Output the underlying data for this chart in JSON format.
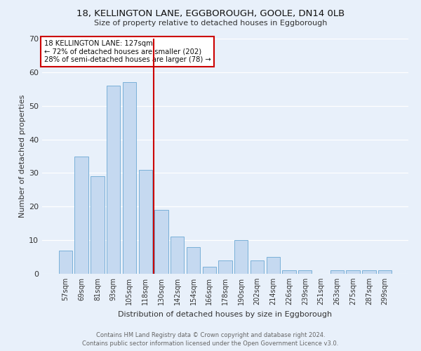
{
  "title1": "18, KELLINGTON LANE, EGGBOROUGH, GOOLE, DN14 0LB",
  "title2": "Size of property relative to detached houses in Eggborough",
  "xlabel": "Distribution of detached houses by size in Eggborough",
  "ylabel": "Number of detached properties",
  "categories": [
    "57sqm",
    "69sqm",
    "81sqm",
    "93sqm",
    "105sqm",
    "118sqm",
    "130sqm",
    "142sqm",
    "154sqm",
    "166sqm",
    "178sqm",
    "190sqm",
    "202sqm",
    "214sqm",
    "226sqm",
    "239sqm",
    "251sqm",
    "263sqm",
    "275sqm",
    "287sqm",
    "299sqm"
  ],
  "values": [
    7,
    35,
    29,
    56,
    57,
    31,
    19,
    11,
    8,
    2,
    4,
    10,
    4,
    5,
    1,
    1,
    0,
    1,
    1,
    1,
    1
  ],
  "bar_color": "#c5d9f0",
  "bar_edge_color": "#7ab0d8",
  "background_color": "#e8f0fa",
  "grid_color": "#ffffff",
  "vline_color": "#cc0000",
  "annotation_line1": "18 KELLINGTON LANE: 127sqm",
  "annotation_line2": "← 72% of detached houses are smaller (202)",
  "annotation_line3": "28% of semi-detached houses are larger (78) →",
  "annotation_box_color": "#ffffff",
  "annotation_box_edge": "#cc0000",
  "footer1": "Contains HM Land Registry data © Crown copyright and database right 2024.",
  "footer2": "Contains public sector information licensed under the Open Government Licence v3.0.",
  "ylim": [
    0,
    70
  ],
  "yticks": [
    0,
    10,
    20,
    30,
    40,
    50,
    60,
    70
  ],
  "title1_fontsize": 9.5,
  "title2_fontsize": 8,
  "ylabel_fontsize": 8,
  "xlabel_fontsize": 8,
  "tick_fontsize": 7,
  "footer_fontsize": 6
}
